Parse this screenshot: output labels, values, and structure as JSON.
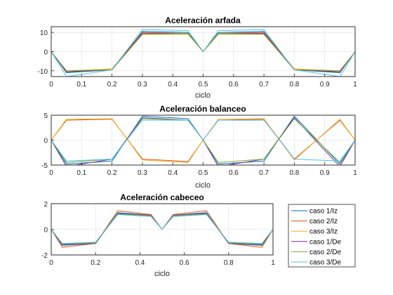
{
  "series_styles": [
    {
      "name": "caso 1/Iz",
      "color": "#0072BD"
    },
    {
      "name": "caso 2/Iz",
      "color": "#D95319"
    },
    {
      "name": "caso 3/Iz",
      "color": "#EDB120"
    },
    {
      "name": "caso 1/De",
      "color": "#7E2F8E"
    },
    {
      "name": "caso 2/De",
      "color": "#77AC30"
    },
    {
      "name": "caso 3/De",
      "color": "#4DBEEE"
    }
  ],
  "chart_data": [
    {
      "type": "line",
      "title": "Aceleración arfada",
      "xlabel": "ciclo",
      "ylabel": "",
      "xlim": [
        0,
        1
      ],
      "ylim": [
        -13,
        13
      ],
      "xticks": [
        0,
        0.1,
        0.2,
        0.3,
        0.4,
        0.5,
        0.6,
        0.7,
        0.8,
        0.9,
        1
      ],
      "yticks": [
        -10,
        0,
        10
      ],
      "grid": true,
      "x": [
        0,
        0.05,
        0.2,
        0.3,
        0.45,
        0.5,
        0.55,
        0.7,
        0.8,
        0.95,
        1
      ],
      "series": [
        {
          "name": "caso 1/Iz",
          "values": [
            0,
            -11,
            -9.5,
            10.5,
            10,
            0,
            10,
            10.5,
            -9.5,
            -11,
            0
          ]
        },
        {
          "name": "caso 2/Iz",
          "values": [
            0,
            -10.5,
            -9,
            10,
            9.5,
            0,
            9.5,
            10,
            -9,
            -10.5,
            0
          ]
        },
        {
          "name": "caso 3/Iz",
          "values": [
            0,
            -10,
            -9,
            9,
            9,
            0,
            9,
            9,
            -9,
            -10,
            0
          ]
        },
        {
          "name": "caso 1/De",
          "values": [
            0,
            -10.5,
            -9.5,
            9.5,
            9.5,
            0,
            9.5,
            9.5,
            -9.5,
            -10.5,
            0
          ]
        },
        {
          "name": "caso 2/De",
          "values": [
            0,
            -10,
            -9.5,
            9,
            9.5,
            0,
            9.5,
            9,
            -9.5,
            -10,
            0
          ]
        },
        {
          "name": "caso 3/De",
          "values": [
            0,
            -13,
            -9.5,
            11.5,
            11,
            0,
            11,
            11.5,
            -9.5,
            -13,
            0
          ]
        }
      ]
    },
    {
      "type": "line",
      "title": "Aceleración balanceo",
      "xlabel": "ciclo",
      "ylabel": "",
      "xlim": [
        0,
        1
      ],
      "ylim": [
        -5,
        5
      ],
      "xticks": [
        0,
        0.1,
        0.2,
        0.3,
        0.4,
        0.5,
        0.6,
        0.7,
        0.8,
        0.9,
        1
      ],
      "yticks": [
        -5,
        0,
        5
      ],
      "grid": true,
      "x": [
        0,
        0.05,
        0.2,
        0.3,
        0.45,
        0.5,
        0.55,
        0.7,
        0.8,
        0.95,
        1
      ],
      "series": [
        {
          "name": "caso 1/Iz",
          "values": [
            0,
            -4.8,
            -4.2,
            4.8,
            4.3,
            0,
            -4.8,
            -4.2,
            4.8,
            -4.8,
            0
          ]
        },
        {
          "name": "caso 2/Iz",
          "values": [
            0,
            4.0,
            4.2,
            -3.8,
            -4.3,
            0,
            4.0,
            4.2,
            -3.8,
            4.0,
            0
          ]
        },
        {
          "name": "caso 3/Iz",
          "values": [
            0,
            4.2,
            4.3,
            -4.0,
            -4.5,
            0,
            4.2,
            4.3,
            -4.0,
            4.2,
            0
          ]
        },
        {
          "name": "caso 1/De",
          "values": [
            0,
            -5.3,
            -3.8,
            4.5,
            4.0,
            0,
            -5.3,
            -3.8,
            4.5,
            -5.3,
            0
          ]
        },
        {
          "name": "caso 2/De",
          "values": [
            0,
            -4.5,
            -3.8,
            4.3,
            4.0,
            0,
            -4.5,
            -3.8,
            4.3,
            -4.5,
            0
          ]
        },
        {
          "name": "caso 3/De",
          "values": [
            0,
            -4.2,
            -3.8,
            4.0,
            4.0,
            0,
            4.0,
            4.0,
            -3.8,
            -4.2,
            0
          ]
        }
      ]
    },
    {
      "type": "line",
      "title": "Aceleración cabeceo",
      "xlabel": "ciclo",
      "ylabel": "",
      "xlim": [
        0,
        1
      ],
      "ylim": [
        -2,
        2
      ],
      "xticks": [
        0,
        0.2,
        0.4,
        0.6,
        0.8,
        1
      ],
      "yticks": [
        -2,
        0,
        2
      ],
      "grid": true,
      "x": [
        0,
        0.05,
        0.2,
        0.3,
        0.45,
        0.5,
        0.55,
        0.7,
        0.8,
        0.95,
        1
      ],
      "series": [
        {
          "name": "caso 1/Iz",
          "values": [
            0,
            -1.25,
            -1.1,
            1.3,
            1.1,
            0,
            1.1,
            1.3,
            -1.1,
            -1.25,
            0
          ]
        },
        {
          "name": "caso 2/Iz",
          "values": [
            0,
            -1.4,
            -1.1,
            1.45,
            1.15,
            0,
            1.15,
            1.45,
            -1.1,
            -1.4,
            0
          ]
        },
        {
          "name": "caso 3/Iz",
          "values": [
            0,
            -1.15,
            -1.05,
            1.2,
            1.05,
            0,
            1.05,
            1.2,
            -1.05,
            -1.15,
            0
          ]
        },
        {
          "name": "caso 1/De",
          "values": [
            0,
            -1.2,
            -1.1,
            1.25,
            1.1,
            0,
            1.1,
            1.25,
            -1.1,
            -1.2,
            0
          ]
        },
        {
          "name": "caso 2/De",
          "values": [
            0,
            -1.15,
            -1.05,
            1.2,
            1.05,
            0,
            1.05,
            1.2,
            -1.05,
            -1.15,
            0
          ]
        },
        {
          "name": "caso 3/De",
          "values": [
            0,
            -1.1,
            -1.0,
            1.15,
            1.0,
            0,
            1.0,
            1.15,
            -1.0,
            -1.1,
            0
          ]
        }
      ]
    }
  ]
}
